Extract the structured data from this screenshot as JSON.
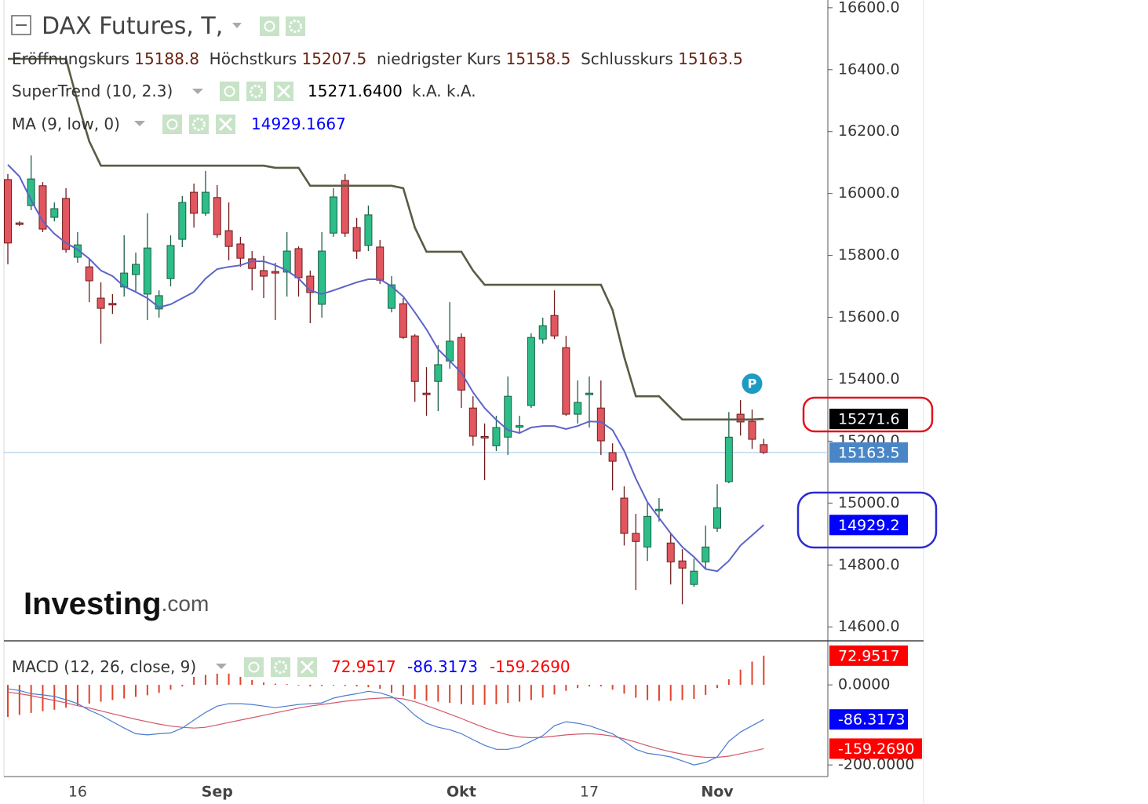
{
  "chart_data": [
    {
      "type": "candlestick",
      "title": "DAX Futures, T,",
      "categories": [
        null,
        null,
        null,
        null,
        null,
        null,
        "16",
        null,
        null,
        null,
        null,
        null,
        null,
        null,
        null,
        null,
        null,
        null,
        "Sep",
        null,
        null,
        null,
        null,
        null,
        null,
        null,
        null,
        null,
        null,
        null,
        null,
        null,
        null,
        null,
        null,
        null,
        null,
        null,
        null,
        "Okt",
        null,
        null,
        null,
        null,
        null,
        null,
        null,
        null,
        null,
        null,
        "17",
        null,
        null,
        null,
        null,
        null,
        null,
        null,
        null,
        null,
        null,
        "Nov",
        null,
        null,
        null,
        null
      ],
      "open": [
        16045,
        15905,
        15961,
        16025,
        15923,
        15984,
        15794,
        15763,
        15662,
        15645,
        15698,
        15738,
        15675,
        15627,
        15725,
        15852,
        16004,
        15936,
        15987,
        15880,
        15837,
        15789,
        15751,
        15748,
        15746,
        15822,
        15733,
        15642,
        15872,
        16042,
        15890,
        15832,
        15827,
        15629,
        15644,
        15540,
        15355,
        15393,
        15459,
        15535,
        15307,
        15215,
        15185,
        15213,
        15245,
        15315,
        15530,
        15606,
        15502,
        15287,
        15350,
        15307,
        15163,
        15016,
        14902,
        14858,
        14975,
        14871,
        14813,
        14737,
        14810,
        14919,
        15069,
        15287,
        15264,
        15188.8
      ],
      "high": [
        16063,
        15910,
        16123,
        16037,
        15971,
        16017,
        15875,
        15789,
        15713,
        15675,
        15865,
        15809,
        15936,
        15687,
        15865,
        15992,
        16032,
        16073,
        16027,
        15971,
        15860,
        15814,
        15799,
        15776,
        15875,
        15829,
        15751,
        15875,
        16017,
        16063,
        15921,
        15961,
        15850,
        15733,
        15662,
        15545,
        15439,
        15510,
        15649,
        15548,
        15345,
        15257,
        15282,
        15409,
        15282,
        15548,
        15599,
        15687,
        15540,
        15396,
        15409,
        15396,
        15193,
        15054,
        14965,
        15003,
        15016,
        14902,
        14851,
        14820,
        14927,
        15061,
        15294,
        15333,
        15302,
        15207.5
      ],
      "low": [
        15771,
        15895,
        15946,
        15875,
        15910,
        15809,
        15776,
        15649,
        15515,
        15611,
        15667,
        15680,
        15591,
        15599,
        15700,
        15827,
        15890,
        15928,
        15857,
        15784,
        15763,
        15687,
        15662,
        15591,
        15667,
        15667,
        15581,
        15599,
        15860,
        15860,
        15789,
        15814,
        15708,
        15616,
        15530,
        15327,
        15282,
        15297,
        15434,
        15307,
        15185,
        15074,
        15168,
        15155,
        15226,
        15307,
        15515,
        15530,
        15282,
        15257,
        15244,
        15155,
        15041,
        14863,
        14719,
        14813,
        14940,
        14737,
        14673,
        14729,
        14787,
        14907,
        15064,
        15218,
        15175,
        15158.5
      ],
      "close": [
        15840,
        15900,
        16047,
        15885,
        15951,
        15819,
        15834,
        15718,
        15629,
        15640,
        15743,
        15771,
        15824,
        15670,
        15832,
        15971,
        15936,
        16004,
        15867,
        15829,
        15791,
        15758,
        15733,
        15743,
        15814,
        15728,
        15680,
        15814,
        15989,
        15872,
        15814,
        15931,
        15720,
        15705,
        15535,
        15393,
        15350,
        15447,
        15523,
        15365,
        15216,
        15210,
        15244,
        15345,
        15250,
        15535,
        15573,
        15540,
        15287,
        15325,
        15355,
        15201,
        15135,
        14902,
        14876,
        14957,
        14980,
        14810,
        14790,
        14780,
        14858,
        14985,
        15213,
        15262,
        15206,
        15163.5
      ],
      "ohlc_labels": [
        "Eröffnungskurs",
        "Höchstkurs",
        "niedrigster Kurs",
        "Schlusskurs"
      ],
      "ohlc_value_color": "#6b2410",
      "up_color": "#2dbd88",
      "up_border": "#1d5e45",
      "down_color": "#e2565f",
      "down_border": "#6e1c1c",
      "last_color": "#4a86c5",
      "ylim": [
        14560,
        16625
      ],
      "yticks": [
        {
          "value": 14600,
          "label": "14600.0"
        },
        {
          "value": 14800,
          "label": "14800.0"
        },
        {
          "value": 15000,
          "label": "15000.0"
        },
        {
          "value": 15200,
          "label": "15200.0"
        },
        {
          "value": 15400,
          "label": "15400.0"
        },
        {
          "value": 15600,
          "label": "15600.0"
        },
        {
          "value": 15800,
          "label": "15800.0"
        },
        {
          "value": 16000,
          "label": "16000.0"
        },
        {
          "value": 16200,
          "label": "16200.0"
        },
        {
          "value": 16400,
          "label": "16400.0"
        },
        {
          "value": 16600,
          "label": "16600.0"
        }
      ],
      "series": [
        {
          "name": "SuperTrend (10, 2.3)",
          "color": "#5b5b44",
          "values": [
            16435,
            16435,
            16435,
            16435,
            16435,
            16435,
            16296,
            16169,
            16090,
            16090,
            16090,
            16090,
            16090,
            16090,
            16090,
            16090,
            16090,
            16090,
            16090,
            16090,
            16090,
            16090,
            16090,
            16083,
            16083,
            16083,
            16025,
            16025,
            16025,
            16025,
            16025,
            16025,
            16025,
            16025,
            16017,
            15890,
            15812,
            15812,
            15812,
            15812,
            15751,
            15705,
            15705,
            15705,
            15705,
            15705,
            15705,
            15705,
            15705,
            15705,
            15705,
            15705,
            15624,
            15472,
            15345,
            15345,
            15345,
            15307,
            15270,
            15270,
            15270,
            15270,
            15270,
            15270,
            15270,
            15271.64
          ],
          "value_label": "15271.6400",
          "extra_text": "k.A.  k.A.",
          "axis_label": "15271.6",
          "label_color": "#000000"
        },
        {
          "name": "MA (9, low, 0)",
          "color": "#5e63c9",
          "values": [
            16093,
            16055,
            15979,
            15910,
            15870,
            15840,
            15819,
            15789,
            15751,
            15733,
            15700,
            15682,
            15662,
            15632,
            15642,
            15662,
            15682,
            15725,
            15756,
            15763,
            15768,
            15781,
            15781,
            15768,
            15751,
            15725,
            15687,
            15675,
            15687,
            15700,
            15713,
            15723,
            15723,
            15700,
            15667,
            15616,
            15561,
            15497,
            15459,
            15421,
            15358,
            15307,
            15269,
            15236,
            15226,
            15244,
            15249,
            15249,
            15239,
            15249,
            15264,
            15262,
            15236,
            15168,
            15079,
            15003,
            14952,
            14902,
            14858,
            14826,
            14787,
            14780,
            14813,
            14863,
            14896,
            14929.1667
          ],
          "axis_label": "14929.2",
          "label_color": "#0000ff"
        }
      ],
      "marker": {
        "label": "P",
        "index": 64,
        "color": "#1e9bc2"
      },
      "watermark": [
        "Investing",
        ".com"
      ]
    },
    {
      "type": "macd",
      "title": "MACD (12, 26, close, 9)",
      "histogram": {
        "color": "#e0442b",
        "label_color": "#ff0000",
        "values": [
          -80,
          -75,
          -70,
          -66,
          -62,
          -57,
          -52,
          -47,
          -42,
          -38,
          -34,
          -30,
          -26,
          -20,
          -12,
          -4,
          20,
          25,
          28,
          28,
          20,
          12,
          6,
          3,
          2,
          -2,
          -4,
          -3,
          -2,
          -3,
          -4,
          -6,
          -10,
          -20,
          -28,
          -35,
          -40,
          -42,
          -45,
          -48,
          -50,
          -50,
          -48,
          -45,
          -42,
          -38,
          -32,
          -24,
          -15,
          -8,
          -4,
          -4,
          -12,
          -22,
          -32,
          -38,
          -40,
          -40,
          -38,
          -35,
          -25,
          -8,
          14,
          38,
          58,
          72.9517
        ]
      },
      "macd": {
        "color": "#4a7ccf",
        "label_color": "#0000ff",
        "values": [
          -10,
          -14,
          -22,
          -25,
          -29,
          -37,
          -47,
          -63,
          -76,
          -92,
          -108,
          -122,
          -125,
          -122,
          -120,
          -108,
          -88,
          -69,
          -53,
          -47,
          -47,
          -49,
          -53,
          -57,
          -53,
          -49,
          -47,
          -45,
          -33,
          -27,
          -22,
          -16,
          -20,
          -29,
          -49,
          -76,
          -96,
          -106,
          -112,
          -122,
          -137,
          -151,
          -161,
          -161,
          -155,
          -141,
          -127,
          -102,
          -92,
          -96,
          -102,
          -112,
          -122,
          -141,
          -161,
          -171,
          -175,
          -180,
          -190,
          -200,
          -194,
          -180,
          -141,
          -118,
          -102,
          -86.3173
        ]
      },
      "signal": {
        "color": "#d2586a",
        "label_color": "#ff0000",
        "value_label": "-159.2690",
        "values": [
          -18,
          -22,
          -27,
          -33,
          -39,
          -45,
          -52,
          -58,
          -65,
          -72,
          -79,
          -86,
          -92,
          -98,
          -103,
          -106,
          -108,
          -106,
          -100,
          -94,
          -88,
          -82,
          -76,
          -70,
          -64,
          -58,
          -53,
          -49,
          -45,
          -41,
          -38,
          -35,
          -33,
          -32,
          -35,
          -42,
          -52,
          -62,
          -73,
          -84,
          -96,
          -107,
          -117,
          -125,
          -130,
          -132,
          -131,
          -128,
          -125,
          -123,
          -122,
          -124,
          -128,
          -135,
          -143,
          -152,
          -160,
          -167,
          -173,
          -178,
          -181,
          -181,
          -178,
          -172,
          -166,
          -159.269
        ]
      },
      "ylim": [
        -229,
        108
      ],
      "yticks": [
        {
          "value": 0,
          "label": "0.0000"
        },
        {
          "value": -200,
          "label": "-200.0000"
        }
      ]
    }
  ]
}
